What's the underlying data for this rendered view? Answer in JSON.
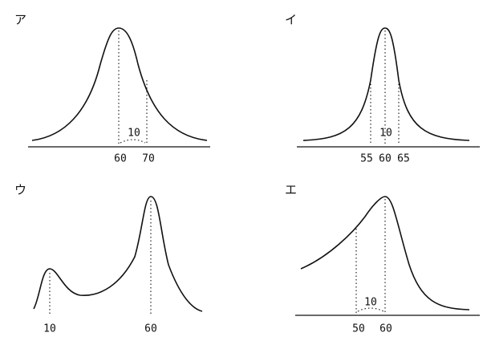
{
  "panels": [
    {
      "label": "ア",
      "ticks": [
        60,
        70
      ],
      "note": 10
    },
    {
      "label": "イ",
      "ticks": [
        55,
        60,
        65
      ],
      "note": 10
    },
    {
      "label": "ウ",
      "ticks": [
        10,
        60
      ]
    },
    {
      "label": "エ",
      "ticks": [
        50,
        60
      ],
      "note": 10
    }
  ]
}
